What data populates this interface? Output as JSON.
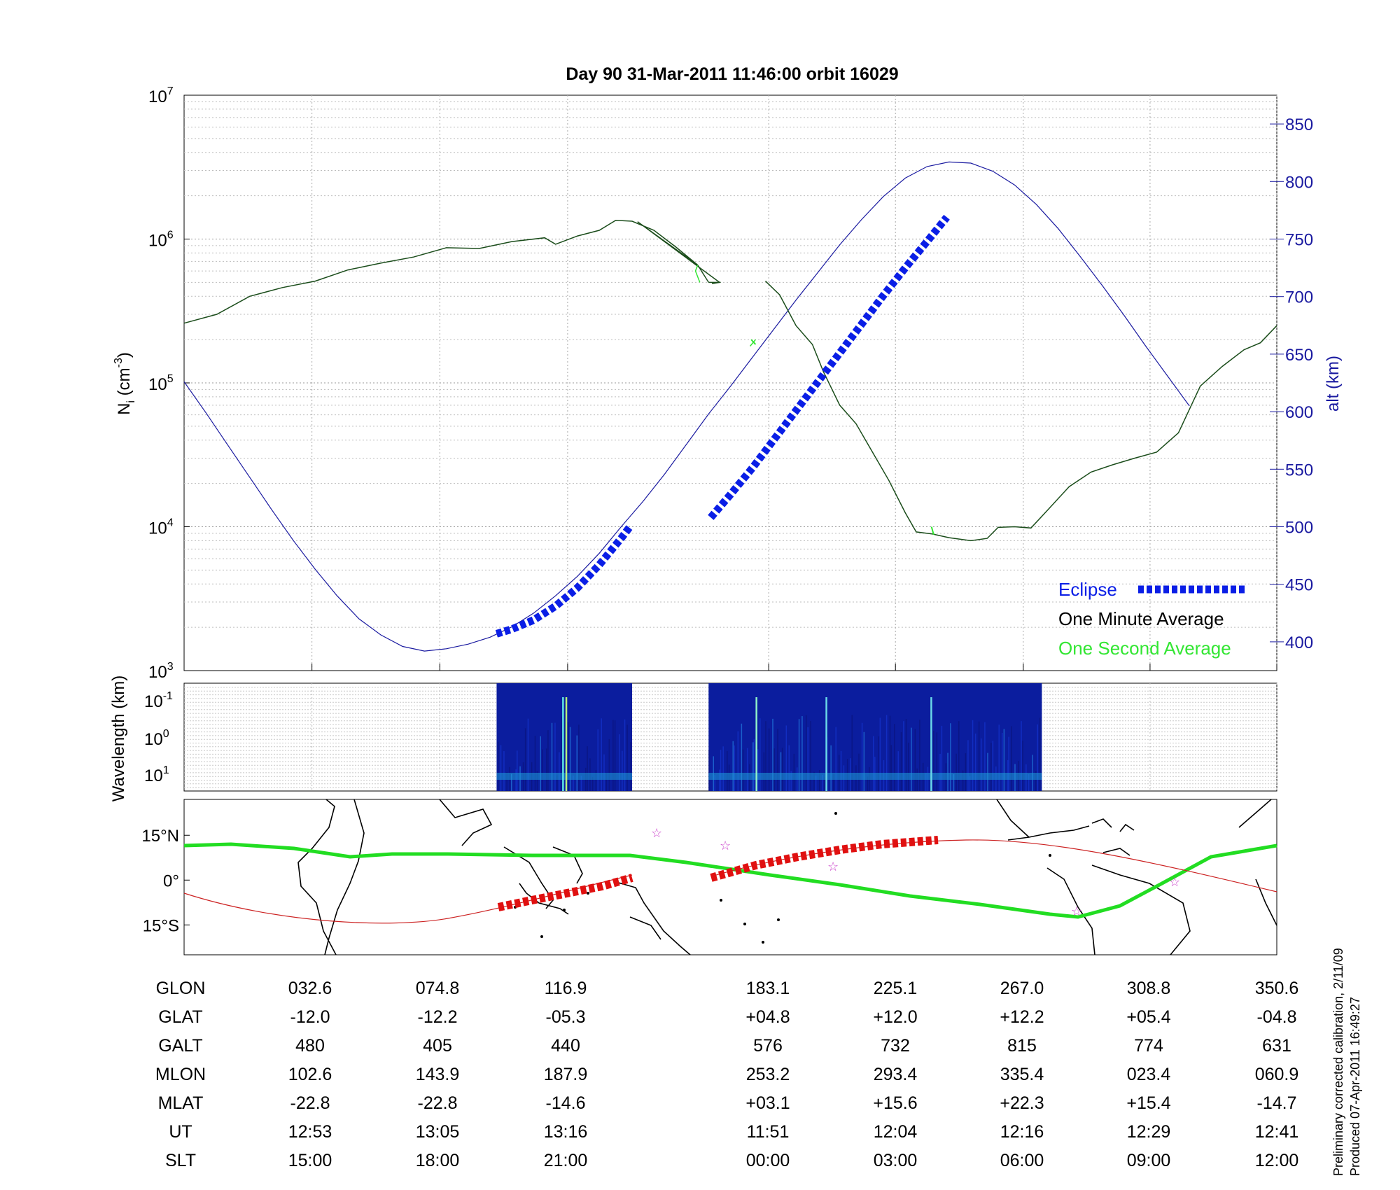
{
  "title": "Day 90  31-Mar-2011 11:46:00   orbit 16029",
  "footnote": [
    "Preliminary corrected calibration, 2/11/09",
    "Produced 07-Apr-2011 16:49:27"
  ],
  "colors": {
    "axis": "#000000",
    "alt": "#1a1aa0",
    "eclipse": "#0a1ee6",
    "minute": "#1b4d1b",
    "second": "#33e633",
    "track": "#cc2222",
    "equator": "#22dd22",
    "star": "#cc44cc",
    "spectro": "#0b1d9e"
  },
  "chart_data": [
    {
      "type": "line",
      "panel": "density",
      "ylabel": "N_i (cm^-3)",
      "yscale": "log",
      "ylim": [
        1000,
        10000000
      ],
      "y_tick_labels": [
        "10^3",
        "10^4",
        "10^5",
        "10^6",
        "10^7"
      ],
      "y2label": "alt (km)",
      "y2lim": [
        375,
        875
      ],
      "y2_ticks": [
        400,
        450,
        500,
        550,
        600,
        650,
        700,
        750,
        800,
        850
      ],
      "xlim": [
        0,
        100
      ],
      "x_ticks": [
        11.7,
        23.4,
        35.1,
        53.5,
        65.1,
        76.8,
        88.4,
        100
      ],
      "legend": {
        "position": "bottom-right",
        "entries": [
          "Eclipse",
          "One Minute Average",
          "One Second Average"
        ]
      },
      "series": [
        {
          "name": "One Minute Average",
          "role": "ion-density",
          "segments": [
            [
              [
                0,
                260000
              ],
              [
                3,
                300000
              ],
              [
                6,
                400000
              ],
              [
                9,
                460000
              ],
              [
                12,
                510000
              ],
              [
                15,
                610000
              ],
              [
                18,
                680000
              ],
              [
                21,
                750000
              ],
              [
                24,
                870000
              ],
              [
                27,
                860000
              ],
              [
                30,
                960000
              ],
              [
                33,
                1020000
              ],
              [
                34,
                920000
              ],
              [
                36,
                1050000
              ],
              [
                38,
                1150000
              ],
              [
                39.5,
                1350000
              ],
              [
                41,
                1330000
              ],
              [
                43,
                1150000
              ],
              [
                45,
                880000
              ],
              [
                47,
                660000
              ],
              [
                41.5,
                1320000
              ],
              [
                49,
                500000
              ]
            ],
            [
              [
                48,
                500000
              ],
              [
                47,
                660000
              ]
            ],
            [
              [
                48,
                500000
              ],
              [
                49,
                500000
              ]
            ],
            [
              [
                48.3,
                490000
              ]
            ],
            [
              [
                48.3,
                490000
              ],
              [
                49,
                500000
              ]
            ],
            [
              [
                48.2,
                500000
              ]
            ],
            [
              [
                48.5,
                500000
              ]
            ],
            [
              [
                48.6,
                500000
              ]
            ],
            [
              [
                48.7,
                500000
              ]
            ],
            [
              [
                48.8,
                500000
              ]
            ],
            [
              [
                48.9,
                500000
              ]
            ],
            [
              [
                49,
                500000
              ]
            ],
            [
              [
                49,
                500000
              ],
              [
                49.1,
                500000
              ]
            ]
          ]
        },
        {
          "name": "One Second Average",
          "role": "ion-density-1s",
          "segments": [
            [
              [
                47,
                660000
              ],
              [
                46.8,
                600000
              ],
              [
                47.2,
                500000
              ]
            ],
            [
              [
                51.8,
                180000
              ],
              [
                52.3,
                200000
              ]
            ]
          ]
        },
        {
          "name": "One Minute Average B",
          "role": "ion-density-b",
          "segments": [
            [
              [
                48.5,
                510000
              ]
            ],
            [
              [
                48.5,
                510000
              ]
            ]
          ]
        },
        {
          "name": "alt",
          "role": "altitude",
          "axis": "right",
          "points": [
            [
              0,
              626
            ],
            [
              2,
              599
            ],
            [
              4,
              571
            ],
            [
              6,
              543
            ],
            [
              8,
              515
            ],
            [
              10,
              488
            ],
            [
              12,
              463
            ],
            [
              14,
              440
            ],
            [
              16,
              420
            ],
            [
              18,
              406
            ],
            [
              20,
              396
            ],
            [
              22,
              392
            ],
            [
              24,
              394
            ],
            [
              26,
              398
            ],
            [
              28,
              404
            ],
            [
              30,
              413
            ],
            [
              32,
              425
            ],
            [
              34,
              440
            ],
            [
              36,
              457
            ],
            [
              38,
              477
            ],
            [
              40,
              500
            ],
            [
              42,
              522
            ],
            [
              44,
              546
            ],
            [
              46,
              572
            ],
            [
              48,
              598
            ],
            [
              50,
              622
            ],
            [
              52,
              647
            ],
            [
              54,
              672
            ],
            [
              56,
              697
            ],
            [
              58,
              721
            ],
            [
              60,
              745
            ],
            [
              62,
              767
            ],
            [
              64,
              787
            ],
            [
              66,
              803
            ],
            [
              68,
              813
            ],
            [
              70,
              817
            ],
            [
              72,
              816
            ],
            [
              74,
              809
            ],
            [
              76,
              797
            ],
            [
              78,
              780
            ],
            [
              80,
              759
            ],
            [
              82,
              735
            ],
            [
              84,
              710
            ],
            [
              86,
              684
            ],
            [
              88,
              657
            ],
            [
              90,
              631
            ],
            [
              92,
              605
            ]
          ]
        },
        {
          "name": "Eclipse",
          "role": "eclipse",
          "axis": "right",
          "segments": [
            [
              [
                28.6,
                407
              ],
              [
                30,
                411
              ],
              [
                32,
                419
              ],
              [
                34,
                431
              ],
              [
                36,
                447
              ],
              [
                38,
                467
              ],
              [
                40,
                490
              ],
              [
                40.8,
                500
              ]
            ],
            [
              [
                48.2,
                508
              ],
              [
                50,
                528
              ],
              [
                52,
                551
              ],
              [
                54,
                576
              ],
              [
                56,
                601
              ],
              [
                58,
                626
              ],
              [
                60,
                651
              ],
              [
                62,
                676
              ],
              [
                64,
                701
              ],
              [
                66,
                725
              ],
              [
                68,
                748
              ],
              [
                69.8,
                769
              ]
            ]
          ]
        }
      ]
    },
    {
      "type": "heatmap",
      "panel": "spectrogram",
      "ylabel": "Wavelength (km)",
      "y_tick_labels": [
        "10^-1",
        "10^0",
        "10^1"
      ],
      "x_ranges": [
        [
          28.6,
          41
        ],
        [
          48,
          78.5
        ]
      ]
    },
    {
      "type": "map",
      "panel": "ground-track",
      "y_tick_labels": [
        "15°N",
        "0°",
        "15°S"
      ],
      "ylim": [
        -25,
        27
      ]
    },
    {
      "type": "table",
      "panel": "orbit-ephemeris",
      "rows": [
        {
          "label": "GLON",
          "values": [
            "032.6",
            "074.8",
            "116.9",
            "183.1",
            "225.1",
            "267.0",
            "308.8",
            "350.6"
          ]
        },
        {
          "label": "GLAT",
          "values": [
            "-12.0",
            "-12.2",
            "-05.3",
            "+04.8",
            "+12.0",
            "+12.2",
            "+05.4",
            "-04.8"
          ]
        },
        {
          "label": "GALT",
          "values": [
            "480",
            "405",
            "440",
            "576",
            "732",
            "815",
            "774",
            "631"
          ]
        },
        {
          "label": "MLON",
          "values": [
            "102.6",
            "143.9",
            "187.9",
            "253.2",
            "293.4",
            "335.4",
            "023.4",
            "060.9"
          ]
        },
        {
          "label": "MLAT",
          "values": [
            "-22.8",
            "-22.8",
            "-14.6",
            "+03.1",
            "+15.6",
            "+22.3",
            "+15.4",
            "-14.7"
          ]
        },
        {
          "label": "UT",
          "values": [
            "12:53",
            "13:05",
            "13:16",
            "11:51",
            "12:04",
            "12:16",
            "12:29",
            "12:41"
          ]
        },
        {
          "label": "SLT",
          "values": [
            "15:00",
            "18:00",
            "21:00",
            "00:00",
            "03:00",
            "06:00",
            "09:00",
            "12:00"
          ]
        }
      ]
    }
  ]
}
